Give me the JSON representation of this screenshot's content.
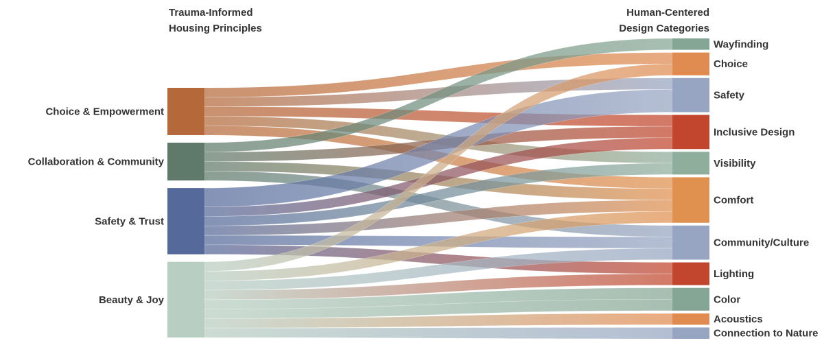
{
  "headers": {
    "left_line1": "Trauma-Informed",
    "left_line2": "Housing Principles",
    "right_line1": "Human-Centered",
    "right_line2": "Design Categories"
  },
  "chart_data": {
    "type": "sankey",
    "sources": [
      {
        "id": "choice_emp",
        "label": "Choice & Empowerment",
        "color": "#b5693a"
      },
      {
        "id": "collab",
        "label": "Collaboration & Community",
        "color": "#5f7a6b"
      },
      {
        "id": "safety_trust",
        "label": "Safety & Trust",
        "color": "#55699a"
      },
      {
        "id": "beauty",
        "label": "Beauty & Joy",
        "color": "#b8cec2"
      }
    ],
    "targets": [
      {
        "id": "wayfinding",
        "label": "Wayfinding",
        "color": "#85a694"
      },
      {
        "id": "choice",
        "label": "Choice",
        "color": "#e08b50"
      },
      {
        "id": "safety",
        "label": "Safety",
        "color": "#97a5c2"
      },
      {
        "id": "inclusive",
        "label": "Inclusive Design",
        "color": "#c2452d"
      },
      {
        "id": "visibility",
        "label": "Visibility",
        "color": "#8fae9b"
      },
      {
        "id": "comfort",
        "label": "Comfort",
        "color": "#e0904f"
      },
      {
        "id": "community",
        "label": "Community/Culture",
        "color": "#97a5c2"
      },
      {
        "id": "lighting",
        "label": "Lighting",
        "color": "#c2452d"
      },
      {
        "id": "color",
        "label": "Color",
        "color": "#85a694"
      },
      {
        "id": "acoustics",
        "label": "Acoustics",
        "color": "#e08b50"
      },
      {
        "id": "nature",
        "label": "Connection to Nature",
        "color": "#97a5c2"
      }
    ],
    "links": [
      {
        "source": "choice_emp",
        "target": "choice",
        "value": 1
      },
      {
        "source": "choice_emp",
        "target": "safety",
        "value": 1
      },
      {
        "source": "choice_emp",
        "target": "inclusive",
        "value": 1
      },
      {
        "source": "choice_emp",
        "target": "visibility",
        "value": 1
      },
      {
        "source": "choice_emp",
        "target": "comfort",
        "value": 1
      },
      {
        "source": "collab",
        "target": "wayfinding",
        "value": 1
      },
      {
        "source": "collab",
        "target": "inclusive",
        "value": 1
      },
      {
        "source": "collab",
        "target": "comfort",
        "value": 1
      },
      {
        "source": "collab",
        "target": "community",
        "value": 1
      },
      {
        "source": "safety_trust",
        "target": "safety",
        "value": 2
      },
      {
        "source": "safety_trust",
        "target": "inclusive",
        "value": 1
      },
      {
        "source": "safety_trust",
        "target": "visibility",
        "value": 1
      },
      {
        "source": "safety_trust",
        "target": "comfort",
        "value": 1
      },
      {
        "source": "safety_trust",
        "target": "community",
        "value": 1
      },
      {
        "source": "safety_trust",
        "target": "lighting",
        "value": 1
      },
      {
        "source": "beauty",
        "target": "choice",
        "value": 1
      },
      {
        "source": "beauty",
        "target": "comfort",
        "value": 1
      },
      {
        "source": "beauty",
        "target": "community",
        "value": 1
      },
      {
        "source": "beauty",
        "target": "lighting",
        "value": 1
      },
      {
        "source": "beauty",
        "target": "color",
        "value": 1
      },
      {
        "source": "beauty",
        "target": "color",
        "value": 1
      },
      {
        "source": "beauty",
        "target": "acoustics",
        "value": 1
      },
      {
        "source": "beauty",
        "target": "nature",
        "value": 1
      }
    ]
  }
}
